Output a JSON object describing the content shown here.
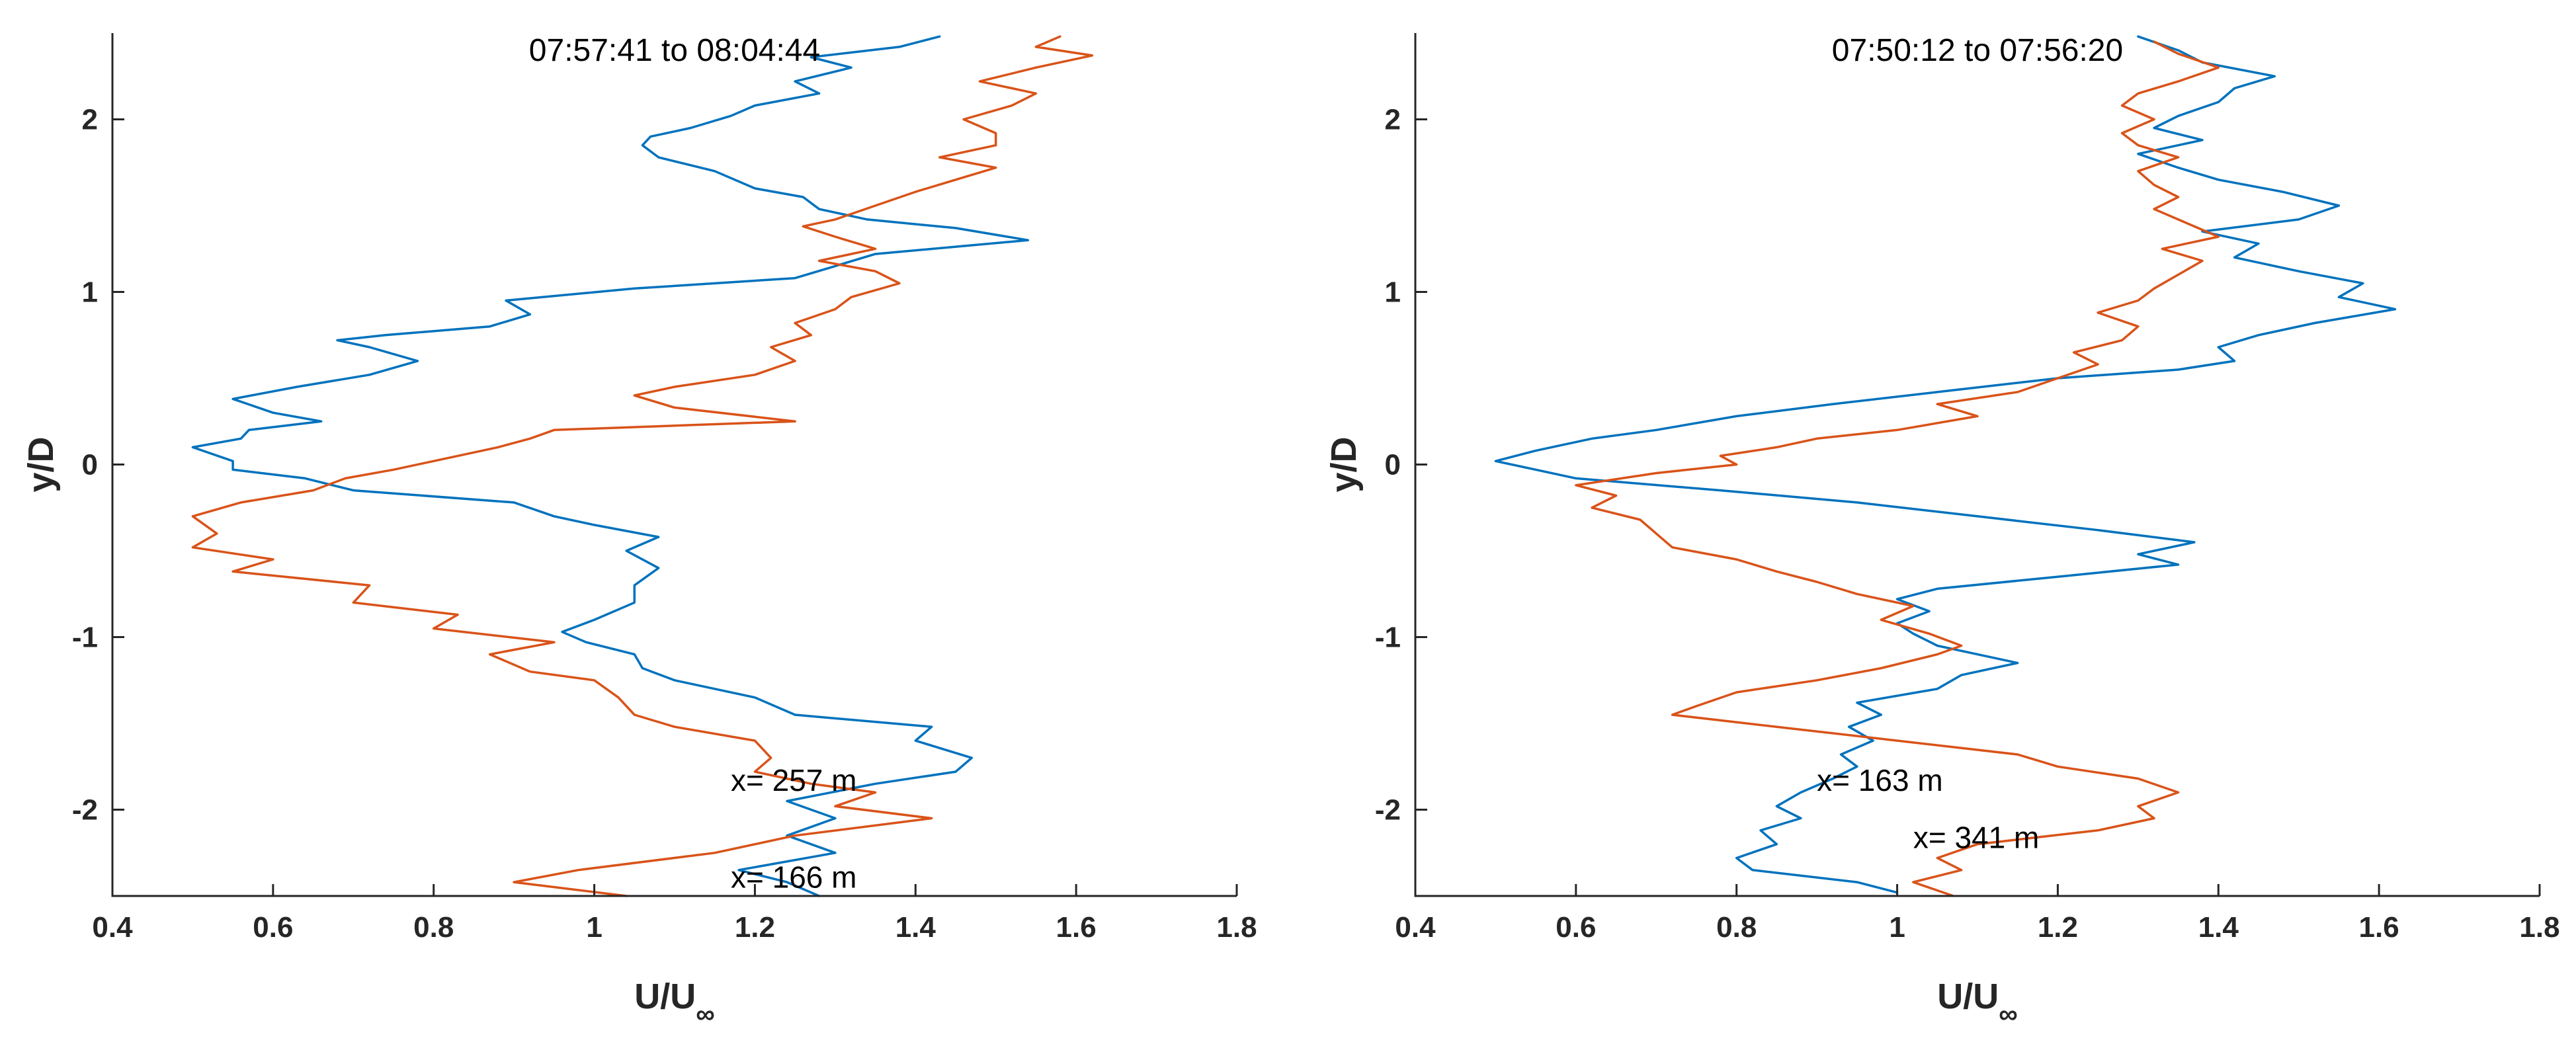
{
  "figure": {
    "panel_count": 2
  },
  "colors": {
    "blue": "#0072BD",
    "orange": "#D95319",
    "axis": "#262626"
  },
  "chart_data": [
    {
      "type": "line",
      "title": "07:57:41 to 08:04:44",
      "xlabel": "U/U",
      "xlabel_sub": "∞",
      "ylabel": "y/D",
      "xlim": [
        0.4,
        1.8
      ],
      "ylim": [
        -2.5,
        2.5
      ],
      "x_ticks": [
        0.4,
        0.6,
        0.8,
        1,
        1.2,
        1.4,
        1.6,
        1.8
      ],
      "x_tick_labels": [
        "0.4",
        "0.6",
        "0.8",
        "1",
        "1.2",
        "1.4",
        "1.6",
        "1.8"
      ],
      "y_ticks": [
        -2,
        -1,
        0,
        1,
        2
      ],
      "y_tick_labels": [
        "-2",
        "-1",
        "0",
        "1",
        "2"
      ],
      "grid": false,
      "annotations": [
        {
          "text": "x= 257 m",
          "x": 1.17,
          "y": -1.83
        },
        {
          "text": "x= 166 m",
          "x": 1.17,
          "y": -2.39
        }
      ],
      "series": [
        {
          "name": "x= 166 m",
          "color": "#0072BD",
          "y": [
            -2.5,
            -2.42,
            -2.35,
            -2.25,
            -2.15,
            -2.05,
            -1.95,
            -1.85,
            -1.78,
            -1.7,
            -1.6,
            -1.52,
            -1.45,
            -1.35,
            -1.25,
            -1.18,
            -1.1,
            -1.03,
            -0.97,
            -0.9,
            -0.8,
            -0.7,
            -0.6,
            -0.5,
            -0.42,
            -0.35,
            -0.3,
            -0.22,
            -0.15,
            -0.08,
            -0.03,
            0.02,
            0.1,
            0.15,
            0.2,
            0.25,
            0.3,
            0.38,
            0.45,
            0.52,
            0.6,
            0.68,
            0.72,
            0.75,
            0.8,
            0.87,
            0.95,
            1.02,
            1.08,
            1.15,
            1.22,
            1.3,
            1.37,
            1.42,
            1.48,
            1.55,
            1.6,
            1.7,
            1.78,
            1.85,
            1.9,
            1.95,
            2.02,
            2.08,
            2.15,
            2.22,
            2.3,
            2.36,
            2.42,
            2.48
          ],
          "x": [
            1.28,
            1.24,
            1.18,
            1.3,
            1.24,
            1.3,
            1.24,
            1.35,
            1.45,
            1.47,
            1.4,
            1.42,
            1.25,
            1.2,
            1.1,
            1.06,
            1.05,
            0.99,
            0.96,
            1.0,
            1.05,
            1.05,
            1.08,
            1.04,
            1.08,
            1.0,
            0.95,
            0.9,
            0.7,
            0.64,
            0.55,
            0.55,
            0.5,
            0.56,
            0.57,
            0.66,
            0.6,
            0.55,
            0.63,
            0.72,
            0.78,
            0.72,
            0.68,
            0.74,
            0.87,
            0.92,
            0.89,
            1.05,
            1.25,
            1.3,
            1.35,
            1.54,
            1.45,
            1.34,
            1.28,
            1.26,
            1.2,
            1.15,
            1.08,
            1.06,
            1.07,
            1.12,
            1.17,
            1.2,
            1.28,
            1.25,
            1.32,
            1.27,
            1.38,
            1.43
          ]
        },
        {
          "name": "x= 257 m",
          "color": "#D95319",
          "y": [
            -2.5,
            -2.42,
            -2.35,
            -2.25,
            -2.15,
            -2.05,
            -1.98,
            -1.9,
            -1.85,
            -1.78,
            -1.7,
            -1.6,
            -1.52,
            -1.45,
            -1.35,
            -1.25,
            -1.2,
            -1.1,
            -1.03,
            -0.95,
            -0.87,
            -0.8,
            -0.7,
            -0.62,
            -0.55,
            -0.48,
            -0.4,
            -0.3,
            -0.22,
            -0.15,
            -0.08,
            -0.03,
            0.02,
            0.1,
            0.15,
            0.2,
            0.25,
            0.33,
            0.4,
            0.45,
            0.52,
            0.6,
            0.68,
            0.75,
            0.82,
            0.9,
            0.97,
            1.05,
            1.12,
            1.18,
            1.25,
            1.32,
            1.38,
            1.42,
            1.5,
            1.58,
            1.65,
            1.72,
            1.78,
            1.85,
            1.92,
            2.0,
            2.08,
            2.15,
            2.22,
            2.3,
            2.37,
            2.42,
            2.48
          ],
          "x": [
            1.04,
            0.9,
            0.98,
            1.15,
            1.25,
            1.42,
            1.3,
            1.35,
            1.27,
            1.2,
            1.22,
            1.2,
            1.1,
            1.05,
            1.03,
            1.0,
            0.92,
            0.87,
            0.95,
            0.8,
            0.83,
            0.7,
            0.72,
            0.55,
            0.6,
            0.5,
            0.53,
            0.5,
            0.56,
            0.65,
            0.69,
            0.75,
            0.8,
            0.88,
            0.92,
            0.95,
            1.25,
            1.1,
            1.05,
            1.1,
            1.2,
            1.25,
            1.22,
            1.27,
            1.25,
            1.3,
            1.32,
            1.38,
            1.35,
            1.28,
            1.35,
            1.3,
            1.26,
            1.3,
            1.35,
            1.4,
            1.45,
            1.5,
            1.43,
            1.5,
            1.5,
            1.46,
            1.52,
            1.55,
            1.48,
            1.55,
            1.62,
            1.55,
            1.58
          ]
        }
      ]
    },
    {
      "type": "line",
      "title": "07:50:12 to 07:56:20",
      "xlabel": "U/U",
      "xlabel_sub": "∞",
      "ylabel": "y/D",
      "xlim": [
        0.4,
        1.8
      ],
      "ylim": [
        -2.5,
        2.5
      ],
      "x_ticks": [
        0.4,
        0.6,
        0.8,
        1,
        1.2,
        1.4,
        1.6,
        1.8
      ],
      "x_tick_labels": [
        "0.4",
        "0.6",
        "0.8",
        "1",
        "1.2",
        "1.4",
        "1.6",
        "1.8"
      ],
      "y_ticks": [
        -2,
        -1,
        0,
        1,
        2
      ],
      "y_tick_labels": [
        "-2",
        "-1",
        "0",
        "1",
        "2"
      ],
      "grid": false,
      "annotations": [
        {
          "text": "x= 163 m",
          "x": 0.9,
          "y": -1.83
        },
        {
          "text": "x= 341 m",
          "x": 1.02,
          "y": -2.16
        }
      ],
      "series": [
        {
          "name": "x= 163 m",
          "color": "#0072BD",
          "y": [
            -2.48,
            -2.42,
            -2.35,
            -2.28,
            -2.2,
            -2.12,
            -2.05,
            -1.98,
            -1.9,
            -1.82,
            -1.75,
            -1.68,
            -1.6,
            -1.52,
            -1.45,
            -1.38,
            -1.3,
            -1.22,
            -1.15,
            -1.1,
            -1.05,
            -0.98,
            -0.92,
            -0.85,
            -0.78,
            -0.72,
            -0.65,
            -0.58,
            -0.52,
            -0.45,
            -0.38,
            -0.3,
            -0.22,
            -0.15,
            -0.08,
            -0.03,
            0.02,
            0.08,
            0.15,
            0.2,
            0.28,
            0.35,
            0.42,
            0.5,
            0.55,
            0.6,
            0.68,
            0.75,
            0.82,
            0.9,
            0.97,
            1.05,
            1.12,
            1.2,
            1.28,
            1.35,
            1.42,
            1.5,
            1.58,
            1.65,
            1.72,
            1.8,
            1.88,
            1.95,
            2.02,
            2.1,
            2.18,
            2.25,
            2.33,
            2.4,
            2.48
          ],
          "x": [
            1.0,
            0.95,
            0.82,
            0.8,
            0.85,
            0.83,
            0.88,
            0.85,
            0.88,
            0.92,
            0.95,
            0.93,
            0.97,
            0.94,
            0.98,
            0.95,
            1.05,
            1.08,
            1.15,
            1.1,
            1.05,
            1.02,
            1.0,
            1.04,
            1.0,
            1.05,
            1.2,
            1.35,
            1.3,
            1.37,
            1.25,
            1.1,
            0.95,
            0.78,
            0.6,
            0.55,
            0.5,
            0.55,
            0.62,
            0.7,
            0.8,
            0.92,
            1.05,
            1.2,
            1.35,
            1.42,
            1.4,
            1.45,
            1.52,
            1.62,
            1.55,
            1.58,
            1.5,
            1.42,
            1.45,
            1.38,
            1.5,
            1.55,
            1.48,
            1.4,
            1.35,
            1.3,
            1.38,
            1.32,
            1.35,
            1.4,
            1.42,
            1.47,
            1.38,
            1.35,
            1.3
          ]
        },
        {
          "name": "x= 341 m",
          "color": "#D95319",
          "y": [
            -2.5,
            -2.42,
            -2.35,
            -2.28,
            -2.2,
            -2.12,
            -2.05,
            -1.98,
            -1.9,
            -1.82,
            -1.75,
            -1.68,
            -1.6,
            -1.52,
            -1.45,
            -1.4,
            -1.32,
            -1.25,
            -1.18,
            -1.1,
            -1.05,
            -0.98,
            -0.9,
            -0.82,
            -0.75,
            -0.68,
            -0.62,
            -0.55,
            -0.48,
            -0.4,
            -0.32,
            -0.25,
            -0.18,
            -0.12,
            -0.05,
            0.0,
            0.05,
            0.1,
            0.15,
            0.2,
            0.28,
            0.35,
            0.42,
            0.5,
            0.58,
            0.65,
            0.72,
            0.8,
            0.88,
            0.95,
            1.02,
            1.1,
            1.18,
            1.25,
            1.32,
            1.4,
            1.48,
            1.55,
            1.62,
            1.7,
            1.78,
            1.85,
            1.92,
            2.0,
            2.08,
            2.15,
            2.22,
            2.3,
            2.38,
            2.45
          ],
          "x": [
            1.07,
            1.02,
            1.08,
            1.05,
            1.1,
            1.25,
            1.32,
            1.3,
            1.35,
            1.3,
            1.2,
            1.15,
            1.0,
            0.85,
            0.72,
            0.75,
            0.8,
            0.9,
            0.98,
            1.05,
            1.08,
            1.04,
            0.98,
            1.02,
            0.95,
            0.9,
            0.85,
            0.8,
            0.72,
            0.7,
            0.68,
            0.62,
            0.65,
            0.6,
            0.7,
            0.8,
            0.78,
            0.85,
            0.9,
            1.0,
            1.1,
            1.05,
            1.15,
            1.2,
            1.25,
            1.22,
            1.28,
            1.3,
            1.25,
            1.3,
            1.32,
            1.35,
            1.38,
            1.33,
            1.4,
            1.36,
            1.32,
            1.35,
            1.32,
            1.3,
            1.35,
            1.3,
            1.28,
            1.32,
            1.28,
            1.3,
            1.35,
            1.4,
            1.35,
            1.32
          ]
        }
      ]
    }
  ]
}
